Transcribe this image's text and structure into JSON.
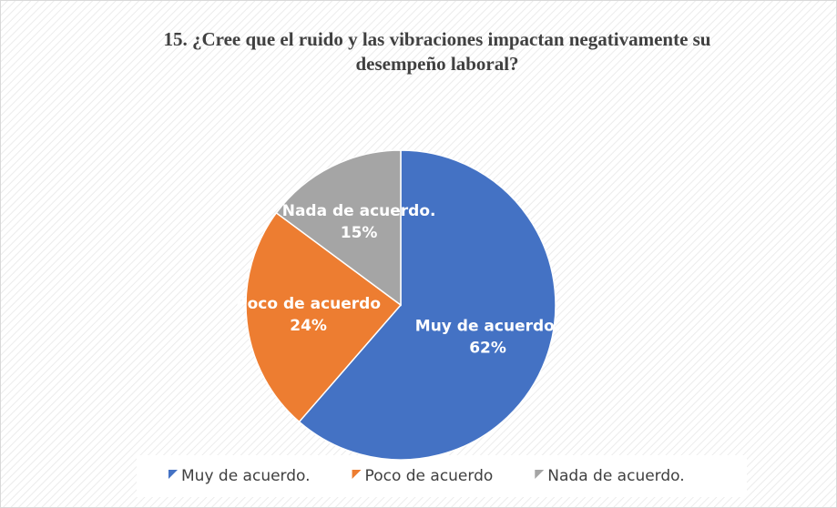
{
  "chart_data": {
    "type": "pie",
    "title": "15. ¿Cree que el ruido y las vibraciones impactan negativamente su desempeño laboral?",
    "categories": [
      "Muy de acuerdo.",
      "Poco de acuerdo",
      "Nada de acuerdo."
    ],
    "values": [
      62,
      24,
      15
    ],
    "value_labels": [
      "62%",
      "24%",
      "15%"
    ],
    "colors": [
      "#4472c4",
      "#ed7d31",
      "#a5a5a5"
    ],
    "legend": "bottom"
  }
}
